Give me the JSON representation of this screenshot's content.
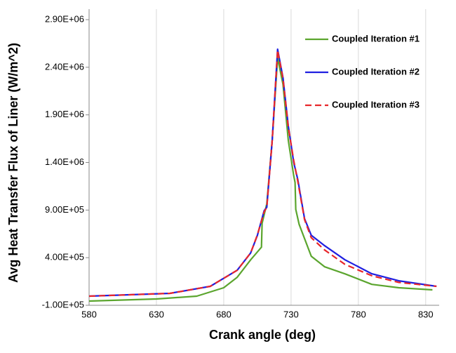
{
  "chart_data": {
    "type": "line",
    "x_label": "Crank angle (deg)",
    "y_label": "Avg Heat Transfer Flux of Liner (W/m^2)",
    "xlim": [
      580,
      840
    ],
    "xticks": [
      580,
      630,
      680,
      730,
      780,
      830
    ],
    "ylim": [
      -100000,
      2900000
    ],
    "yticks": [
      {
        "value": -100000,
        "label": "-1.00E+05"
      },
      {
        "value": 400000,
        "label": "4.00E+05"
      },
      {
        "value": 900000,
        "label": "9.00E+05"
      },
      {
        "value": 1400000,
        "label": "1.40E+06"
      },
      {
        "value": 1900000,
        "label": "1.90E+06"
      },
      {
        "value": 2400000,
        "label": "2.40E+06"
      },
      {
        "value": 2900000,
        "label": "2.90E+06"
      }
    ],
    "grid": "x",
    "legend": "upper right",
    "series": [
      {
        "name": "Coupled Iteration #1",
        "color": "#5ba52e",
        "line_style": "solid",
        "x": [
          580,
          630,
          660,
          680,
          690,
          700,
          708,
          708.5,
          712,
          716,
          720,
          724,
          728,
          732,
          733,
          733.5,
          736,
          745,
          755,
          770,
          790,
          810,
          835
        ],
        "values": [
          -56000,
          -34000,
          -4000,
          84000,
          194000,
          378000,
          510000,
          760000,
          966000,
          1630000,
          2500000,
          2220000,
          1630000,
          1260000,
          1190000,
          907000,
          750000,
          415000,
          304000,
          230000,
          120000,
          84000,
          62000
        ]
      },
      {
        "name": "Coupled Iteration #2",
        "color": "#1f1fe0",
        "line_style": "solid",
        "x": [
          580,
          640,
          670,
          690,
          700,
          705,
          710,
          712,
          716,
          720,
          724,
          728,
          732,
          735,
          740,
          745,
          755,
          770,
          790,
          810,
          838
        ],
        "values": [
          -4000,
          25000,
          99000,
          268000,
          450000,
          635000,
          893000,
          930000,
          1630000,
          2590000,
          2290000,
          1780000,
          1400000,
          1220000,
          810000,
          635000,
          525000,
          378000,
          231000,
          157000,
          99000
        ]
      },
      {
        "name": "Coupled Iteration #3",
        "color": "#e8262b",
        "line_style": "dashed",
        "x": [
          580,
          640,
          670,
          690,
          700,
          705,
          710,
          712,
          716,
          720,
          724,
          728,
          732,
          735,
          740,
          745,
          755,
          770,
          790,
          810,
          838
        ],
        "values": [
          -4000,
          25000,
          99000,
          268000,
          450000,
          640000,
          880000,
          930000,
          1630000,
          2580000,
          2280000,
          1770000,
          1420000,
          1200000,
          800000,
          610000,
          480000,
          330000,
          210000,
          140000,
          99000
        ]
      }
    ]
  }
}
